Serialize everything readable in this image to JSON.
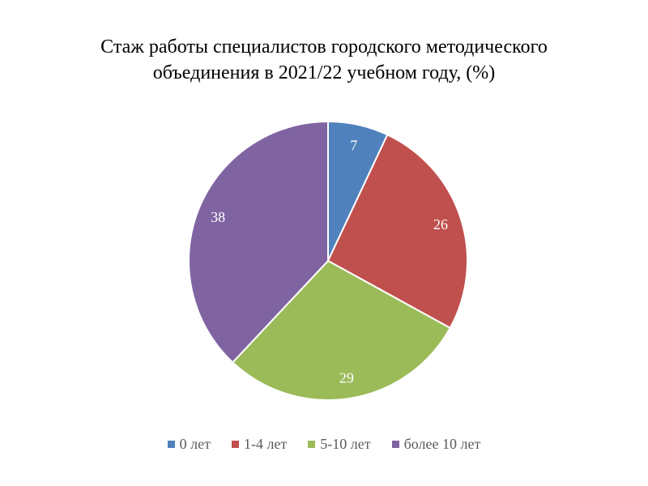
{
  "chart_data": {
    "type": "pie",
    "title_lines": [
      "Стаж работы специалистов городского методического",
      "объединения в 2021/22 учебном году, (%)"
    ],
    "categories": [
      "0 лет",
      "1-4 лет",
      "5-10 лет",
      "более 10 лет"
    ],
    "values": [
      7,
      26,
      29,
      38
    ],
    "colors": [
      "#4F81BD",
      "#C0504D",
      "#9BBB59",
      "#8064A2"
    ],
    "data_labels": [
      "7",
      "26",
      "29",
      "38"
    ],
    "start_angle": "12 o'clock",
    "direction": "clockwise",
    "legend_position": "bottom"
  }
}
